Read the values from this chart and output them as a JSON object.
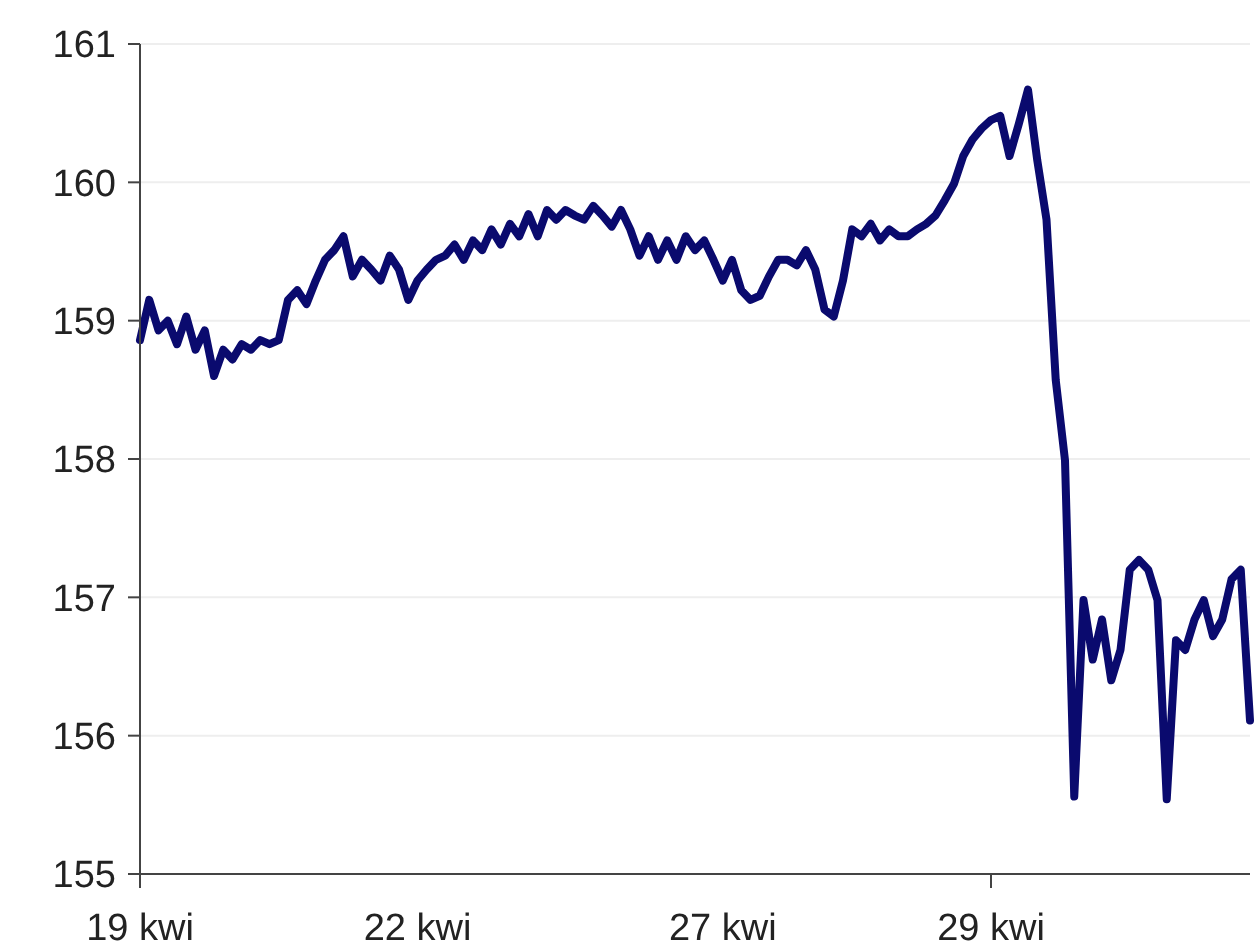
{
  "chart_data": {
    "type": "line",
    "ylim": [
      155,
      161
    ],
    "yticks": [
      155,
      156,
      157,
      158,
      159,
      160,
      161
    ],
    "grid": "y",
    "line_style": "solid",
    "categories": [
      "19 kwi",
      null,
      null,
      null,
      null,
      null,
      null,
      null,
      null,
      null,
      null,
      null,
      null,
      null,
      null,
      null,
      null,
      null,
      null,
      null,
      null,
      null,
      null,
      null,
      null,
      null,
      null,
      null,
      null,
      null,
      "22 kwi",
      null,
      null,
      null,
      null,
      null,
      null,
      null,
      null,
      null,
      null,
      null,
      null,
      null,
      null,
      null,
      null,
      null,
      null,
      null,
      null,
      null,
      null,
      null,
      null,
      null,
      null,
      null,
      null,
      null,
      null,
      null,
      null,
      "27 kwi",
      null,
      null,
      null,
      null,
      null,
      null,
      null,
      null,
      null,
      null,
      null,
      null,
      null,
      null,
      null,
      null,
      null,
      null,
      null,
      null,
      null,
      null,
      null,
      null,
      null,
      null,
      null,
      null,
      "29 kwi",
      null,
      null,
      null,
      null,
      null,
      null,
      null,
      null,
      null,
      null,
      null,
      null,
      null,
      null,
      null,
      null,
      null,
      null,
      null,
      null,
      null,
      null,
      null,
      null,
      null,
      null,
      null,
      null
    ],
    "series": [
      {
        "color": "#0a0a6e",
        "values": [
          158.86,
          159.15,
          158.93,
          159.0,
          158.83,
          159.03,
          158.79,
          158.93,
          158.6,
          158.79,
          158.72,
          158.83,
          158.79,
          158.86,
          158.83,
          158.86,
          159.15,
          159.22,
          159.12,
          159.29,
          159.44,
          159.51,
          159.61,
          159.32,
          159.44,
          159.37,
          159.29,
          159.47,
          159.37,
          159.15,
          159.29,
          159.37,
          159.44,
          159.47,
          159.55,
          159.44,
          159.58,
          159.51,
          159.66,
          159.55,
          159.7,
          159.61,
          159.77,
          159.61,
          159.8,
          159.73,
          159.8,
          159.76,
          159.73,
          159.83,
          159.76,
          159.68,
          159.8,
          159.66,
          159.47,
          159.61,
          159.44,
          159.58,
          159.44,
          159.61,
          159.51,
          159.58,
          159.44,
          159.29,
          159.44,
          159.22,
          159.15,
          159.18,
          159.32,
          159.44,
          159.44,
          159.4,
          159.51,
          159.37,
          159.08,
          159.03,
          159.29,
          159.66,
          159.61,
          159.7,
          159.58,
          159.66,
          159.61,
          159.61,
          159.66,
          159.7,
          159.76,
          159.87,
          159.99,
          160.19,
          160.31,
          160.39,
          160.45,
          160.48,
          160.19,
          160.42,
          160.67,
          160.16,
          159.73,
          158.57,
          157.99,
          155.56,
          156.98,
          156.55,
          156.84,
          156.4,
          156.62,
          157.2,
          157.27,
          157.2,
          156.98,
          155.54,
          156.69,
          156.62,
          156.84,
          156.98,
          156.72,
          156.84,
          157.13,
          157.2,
          156.11
        ]
      }
    ]
  }
}
